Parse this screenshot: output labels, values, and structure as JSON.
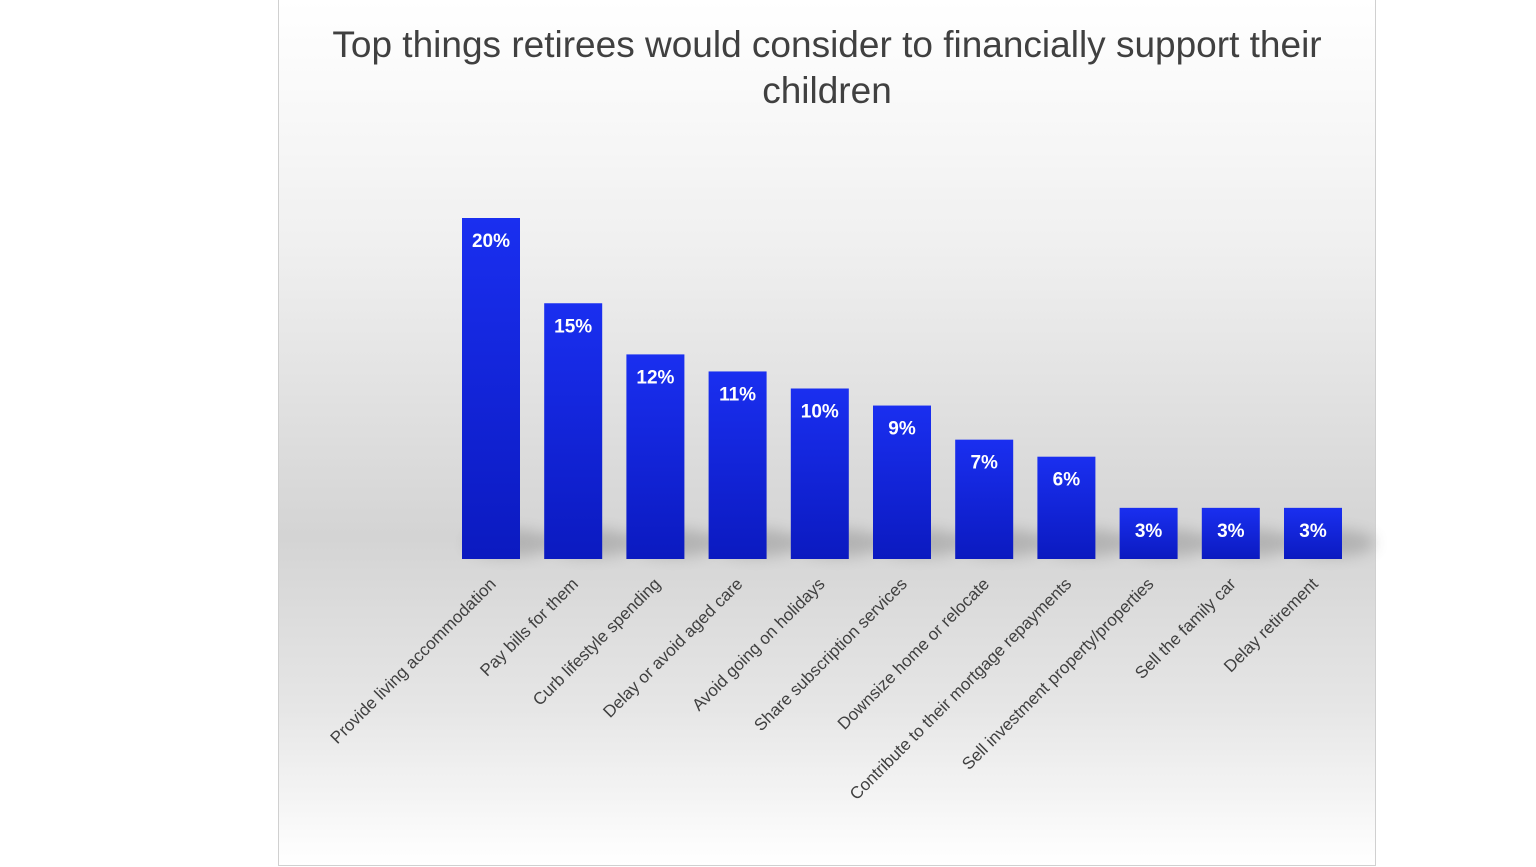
{
  "chart_data": {
    "type": "bar",
    "title": "Top things retirees would consider to financially support their children",
    "categories": [
      "Provide living accommodation",
      "Pay bills for them",
      "Curb lifestyle spending",
      "Delay or avoid aged care",
      "Avoid going on holidays",
      "Share subscription services",
      "Downsize home or relocate",
      "Contribute to their mortgage repayments",
      "Sell investment property/properties",
      "Sell the family car",
      "Delay retirement"
    ],
    "values": [
      20,
      15,
      12,
      11,
      10,
      9,
      7,
      6,
      3,
      3,
      3
    ],
    "value_labels": [
      "20%",
      "15%",
      "12%",
      "11%",
      "10%",
      "9%",
      "7%",
      "6%",
      "3%",
      "3%",
      "3%"
    ],
    "unit": "%",
    "ylim": [
      0,
      20
    ],
    "grid": false,
    "legend": "none",
    "colors": {
      "bar_top": "#1a2ff0",
      "bar_bottom": "#0b1ac0",
      "text": "#404040"
    }
  }
}
